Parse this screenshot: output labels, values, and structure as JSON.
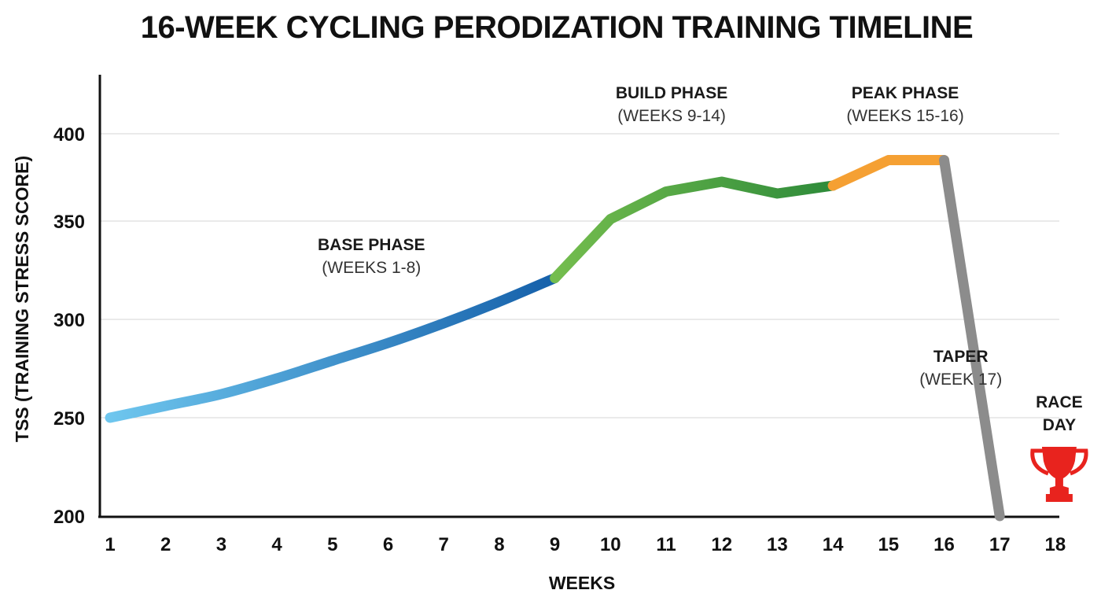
{
  "chart_data": {
    "type": "line",
    "title": "16-WEEK CYCLING PERODIZATION TRAINING TIMELINE",
    "xlabel": "WEEKS",
    "ylabel": "TSS (TRAINING STRESS SCORE)",
    "x_ticks": [
      "1",
      "2",
      "3",
      "4",
      "5",
      "6",
      "7",
      "8",
      "9",
      "10",
      "11",
      "12",
      "13",
      "14",
      "15",
      "16",
      "17",
      "18"
    ],
    "y_ticks": [
      "200",
      "250",
      "300",
      "350",
      "400"
    ],
    "xlim": [
      1,
      18
    ],
    "ylim": [
      200,
      420
    ],
    "grid": true,
    "series": [
      {
        "name": "Base Phase",
        "color_start": "#6ec6ee",
        "color_end": "#1560aa",
        "x": [
          1,
          2,
          3,
          4,
          5,
          6,
          7,
          8,
          9
        ],
        "values": [
          250,
          256,
          262,
          270,
          279,
          288,
          298,
          309,
          321
        ]
      },
      {
        "name": "Build Phase",
        "color_start": "#74bd4e",
        "color_end": "#2e8b3a",
        "x": [
          9,
          10,
          11,
          12,
          13,
          14
        ],
        "values": [
          321,
          351,
          365,
          370,
          364,
          368
        ]
      },
      {
        "name": "Peak Phase",
        "color": "#f5a033",
        "x": [
          14,
          15,
          16
        ],
        "values": [
          368,
          381,
          381
        ]
      },
      {
        "name": "Taper",
        "color": "#8c8c8c",
        "x": [
          16,
          17
        ],
        "values": [
          381,
          200
        ]
      }
    ],
    "annotations": [
      {
        "id": "base",
        "name": "BASE PHASE",
        "range": "(WEEKS 1-8)",
        "x": 5.7,
        "y": 341
      },
      {
        "id": "build",
        "name": "BUILD PHASE",
        "range": "(WEEKS 9-14)",
        "x": 11.1,
        "y": 400
      },
      {
        "id": "peak",
        "name": "PEAK PHASE",
        "range": "(WEEKS 15-16)",
        "x": 15.3,
        "y": 400
      },
      {
        "id": "taper",
        "name": "TAPER",
        "range": "(WEEK 17)",
        "x": 16.3,
        "y": 285
      }
    ],
    "race_day": {
      "label_line1": "RACE",
      "label_line2": "DAY",
      "icon": "trophy-icon",
      "color": "#e8231e",
      "x": 18
    }
  }
}
